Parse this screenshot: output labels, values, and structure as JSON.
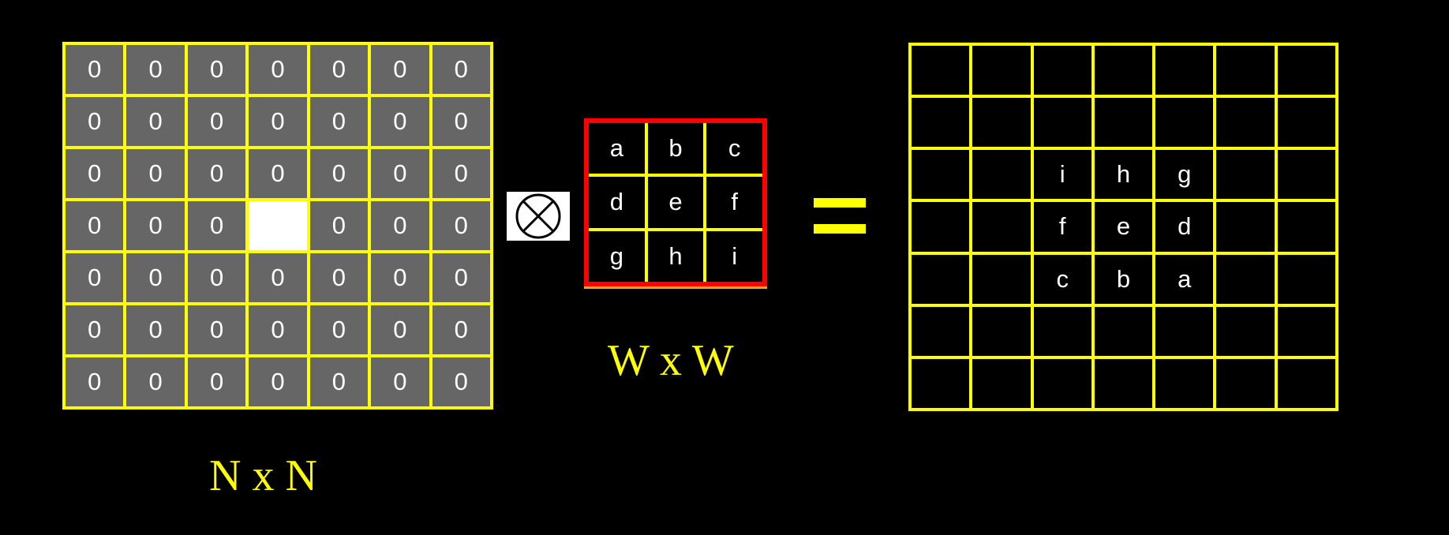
{
  "input_grid": {
    "size": 7,
    "highlight": {
      "row": 3,
      "col": 3
    },
    "rows": [
      [
        "0",
        "0",
        "0",
        "0",
        "0",
        "0",
        "0"
      ],
      [
        "0",
        "0",
        "0",
        "0",
        "0",
        "0",
        "0"
      ],
      [
        "0",
        "0",
        "0",
        "0",
        "0",
        "0",
        "0"
      ],
      [
        "0",
        "0",
        "0",
        "",
        "0",
        "0",
        "0"
      ],
      [
        "0",
        "0",
        "0",
        "0",
        "0",
        "0",
        "0"
      ],
      [
        "0",
        "0",
        "0",
        "0",
        "0",
        "0",
        "0"
      ],
      [
        "0",
        "0",
        "0",
        "0",
        "0",
        "0",
        "0"
      ]
    ],
    "caption": "N x N"
  },
  "operator": {
    "icon": "circled-times-icon"
  },
  "kernel": {
    "rows": [
      [
        "a",
        "b",
        "c"
      ],
      [
        "d",
        "e",
        "f"
      ],
      [
        "g",
        "h",
        "i"
      ]
    ],
    "caption": "W x W"
  },
  "equals": {
    "icon": "equals-icon"
  },
  "output_grid": {
    "size": 7,
    "rows": [
      [
        "",
        "",
        "",
        "",
        "",
        "",
        ""
      ],
      [
        "",
        "",
        "",
        "",
        "",
        "",
        ""
      ],
      [
        "",
        "",
        "i",
        "h",
        "g",
        "",
        ""
      ],
      [
        "",
        "",
        "f",
        "e",
        "d",
        "",
        ""
      ],
      [
        "",
        "",
        "c",
        "b",
        "a",
        "",
        ""
      ],
      [
        "",
        "",
        "",
        "",
        "",
        "",
        ""
      ],
      [
        "",
        "",
        "",
        "",
        "",
        "",
        ""
      ]
    ]
  },
  "colors": {
    "grid_line": "#ffff00",
    "input_cell": "#666666",
    "highlight_cell": "#ffffff",
    "kernel_border": "#ff0000",
    "background": "#000000",
    "text": "#ffffff"
  }
}
